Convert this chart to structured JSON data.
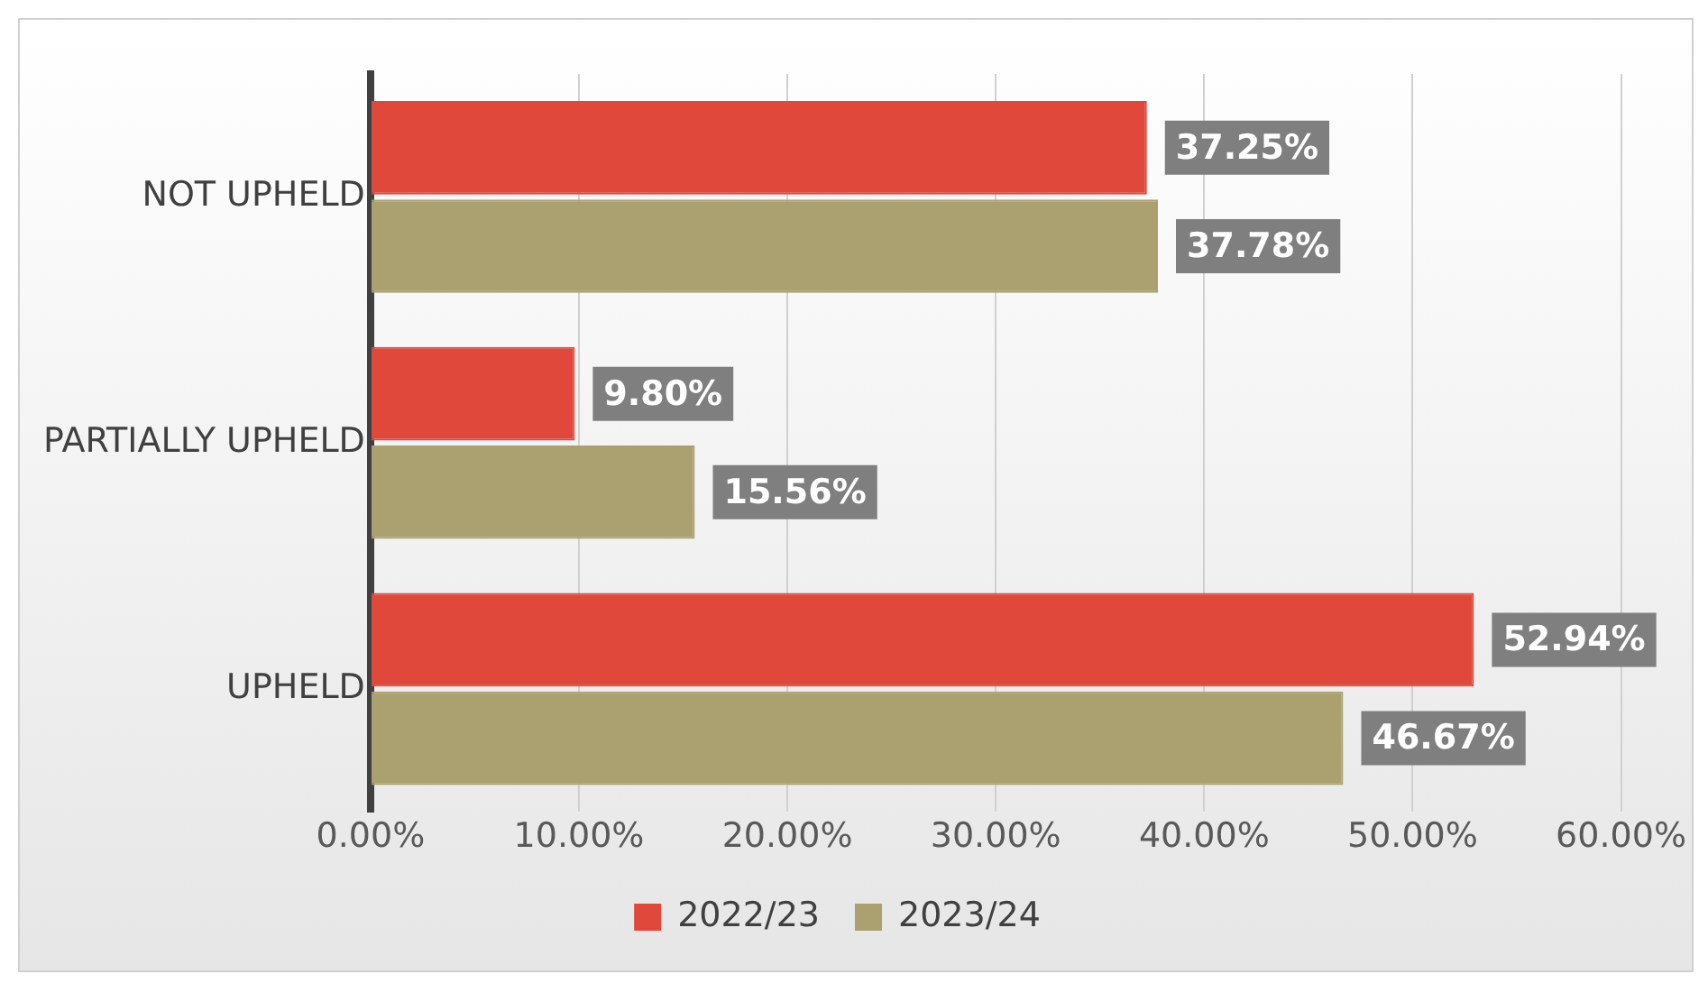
{
  "chart_data": {
    "type": "bar",
    "orientation": "horizontal",
    "categories": [
      "NOT UPHELD",
      "PARTIALLY UPHELD",
      "UPHELD"
    ],
    "series": [
      {
        "name": "2022/23",
        "color": "#e0483c",
        "values": [
          37.25,
          9.8,
          52.94
        ],
        "value_labels": [
          "37.25%",
          "9.80%",
          "52.94%"
        ]
      },
      {
        "name": "2023/24",
        "color": "#aaa070",
        "values": [
          37.78,
          15.56,
          46.67
        ],
        "value_labels": [
          "37.78%",
          "15.56%",
          "46.67%"
        ]
      }
    ],
    "xlim": [
      0,
      60
    ],
    "xticks": [
      {
        "value": 0,
        "label": "0.00%"
      },
      {
        "value": 10,
        "label": "10.00%"
      },
      {
        "value": 20,
        "label": "20.00%"
      },
      {
        "value": 30,
        "label": "30.00%"
      },
      {
        "value": 40,
        "label": "40.00%"
      },
      {
        "value": 50,
        "label": "50.00%"
      },
      {
        "value": 60,
        "label": "60.00%"
      }
    ],
    "grid": "x",
    "legend": "bottom"
  }
}
